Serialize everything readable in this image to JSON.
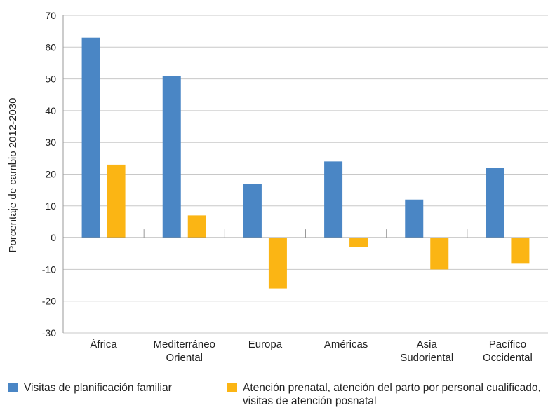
{
  "chart_data": {
    "type": "bar",
    "categories": [
      [
        "África"
      ],
      [
        "Mediterráneo",
        "Oriental"
      ],
      [
        "Europa"
      ],
      [
        "Américas"
      ],
      [
        "Asia",
        "Sudoriental"
      ],
      [
        "Pacífico",
        "Occidental"
      ]
    ],
    "series": [
      {
        "name": "Visitas de planificación familiar",
        "color": "#4a86c5",
        "values": [
          63,
          51,
          17,
          24,
          12,
          22
        ]
      },
      {
        "name": "Atención prenatal, atención del parto por personal cualificado, visitas de atención posnatal",
        "color": "#fbb514",
        "values": [
          23,
          7,
          -16,
          -3,
          -10,
          -8
        ]
      }
    ],
    "ylabel": "Porcentaje de cambio 2012-2030",
    "ylim": [
      -30,
      70
    ],
    "yticks": [
      70,
      60,
      50,
      40,
      30,
      20,
      10,
      0,
      -10,
      -20,
      -30
    ],
    "grid": true,
    "legend_position": "bottom"
  },
  "legend": {
    "items": [
      {
        "label": "Visitas de planificación familiar",
        "color": "#4a86c5"
      },
      {
        "label": "Atención prenatal, atención del parto por personal cualificado, visitas de atención posnatal",
        "color": "#fbb514"
      }
    ]
  }
}
